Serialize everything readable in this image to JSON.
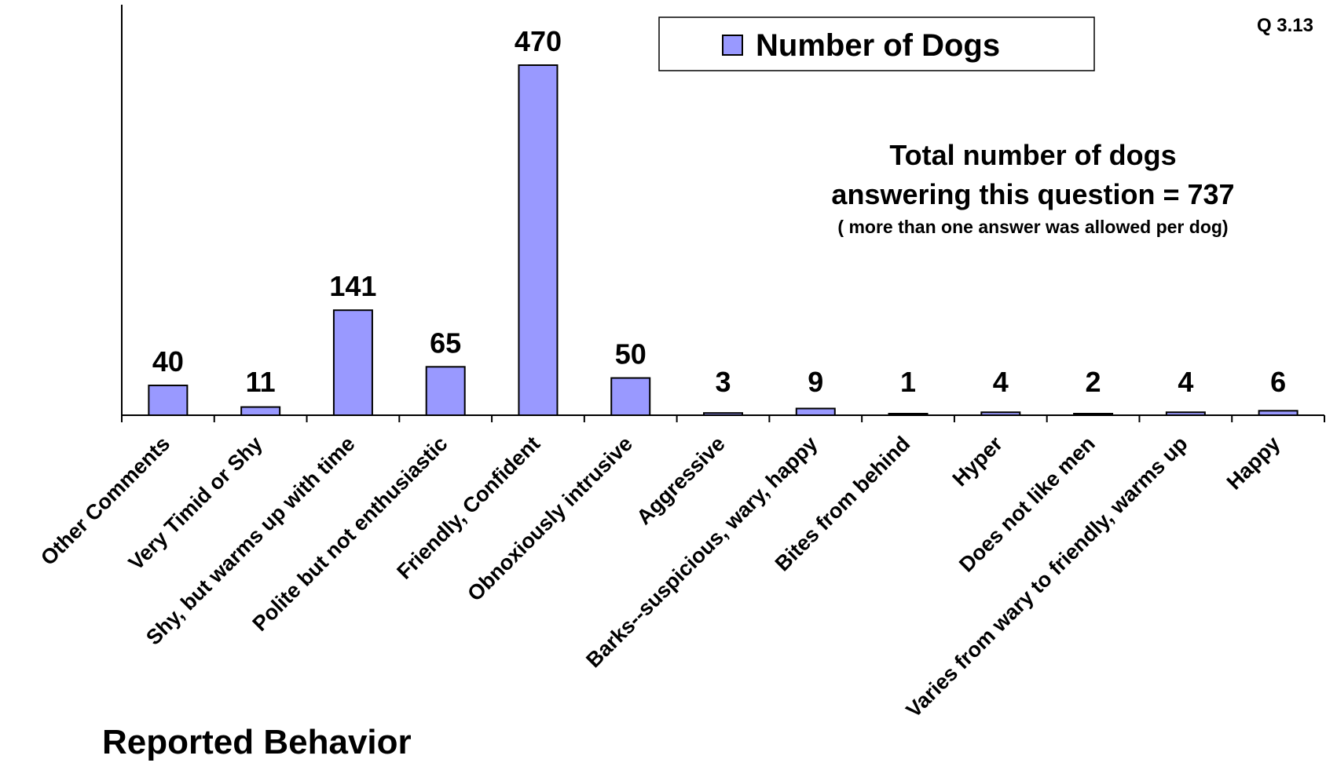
{
  "chart_data": {
    "type": "bar",
    "categories": [
      "Other Comments",
      "Very Timid or Shy",
      "Shy, but warms up with time",
      "Polite but not enthusiastic",
      "Friendly, Confident",
      "Obnoxiously intrusive",
      "Aggressive",
      "Barks--suspicious, wary, happy",
      "Bites from behind",
      "Hyper",
      "Does not like men",
      "Varies from wary to friendly, warms up",
      "Happy"
    ],
    "series": [
      {
        "name": "Number of Dogs",
        "values": [
          40,
          11,
          141,
          65,
          470,
          50,
          3,
          9,
          1,
          4,
          2,
          4,
          6
        ]
      }
    ],
    "title": "",
    "xlabel": "Reported Behavior",
    "ylabel": "",
    "ylim": [
      0,
      470
    ],
    "grid": false,
    "legend": "top",
    "data_labels": [
      "40",
      "11",
      "141",
      "65",
      "470",
      "50",
      "3",
      "9",
      "1",
      "4",
      "2",
      "4",
      "6"
    ],
    "annotations": {
      "question_id": "Q 3.13",
      "total_line1": "Total number of dogs",
      "total_line2": "answering this question = 737",
      "note": "( more than one answer was allowed per dog)"
    },
    "colors": {
      "bar_fill": "#9999FF",
      "bar_stroke": "#000000",
      "axis": "#000000"
    }
  }
}
